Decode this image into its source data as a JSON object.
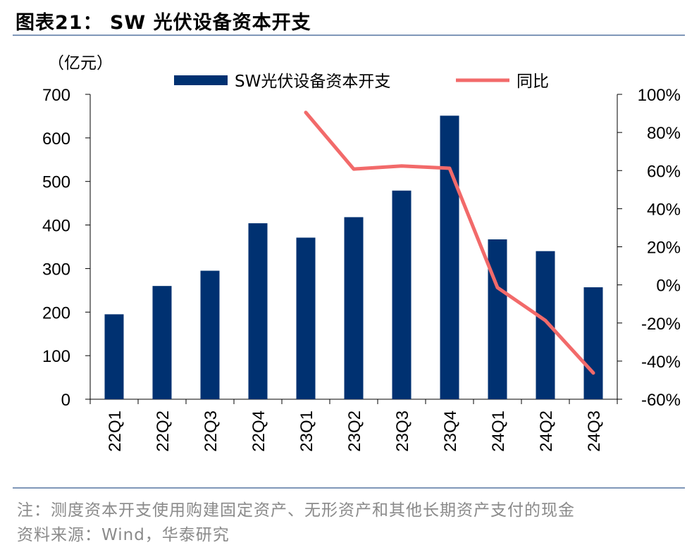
{
  "header": {
    "title": "图表21： SW 光伏设备资本开支"
  },
  "chart_data": {
    "type": "bar+line",
    "title": "SW 光伏设备资本开支",
    "unit_label": "（亿元）",
    "categories": [
      "22Q1",
      "22Q2",
      "22Q3",
      "22Q4",
      "23Q1",
      "23Q2",
      "23Q3",
      "23Q4",
      "24Q1",
      "24Q2",
      "24Q3"
    ],
    "series": [
      {
        "name": "SW光伏设备资本开支",
        "kind": "bar",
        "axis": "left",
        "color": "#003171",
        "values": [
          195,
          260,
          295,
          404,
          371,
          418,
          479,
          651,
          367,
          340,
          257
        ]
      },
      {
        "name": "同比",
        "kind": "line",
        "axis": "right",
        "color": "#f26a6a",
        "values": [
          null,
          null,
          null,
          null,
          90.5,
          60.8,
          62.4,
          61.2,
          -1.4,
          -18.7,
          -46.2
        ]
      }
    ],
    "left_axis": {
      "ylim": [
        0,
        700
      ],
      "ticks": [
        "0",
        "100",
        "200",
        "300",
        "400",
        "500",
        "600",
        "700"
      ]
    },
    "right_axis": {
      "ylim": [
        -60,
        100
      ],
      "ticks": [
        "-60%",
        "-40%",
        "-20%",
        "0%",
        "20%",
        "40%",
        "60%",
        "80%",
        "100%"
      ]
    },
    "legend": [
      "SW光伏设备资本开支",
      "同比"
    ]
  },
  "footer": {
    "note": "注：测度资本开支使用购建固定资产、无形资产和其他长期资产支付的现金",
    "source": "资料来源：Wind，华泰研究"
  }
}
